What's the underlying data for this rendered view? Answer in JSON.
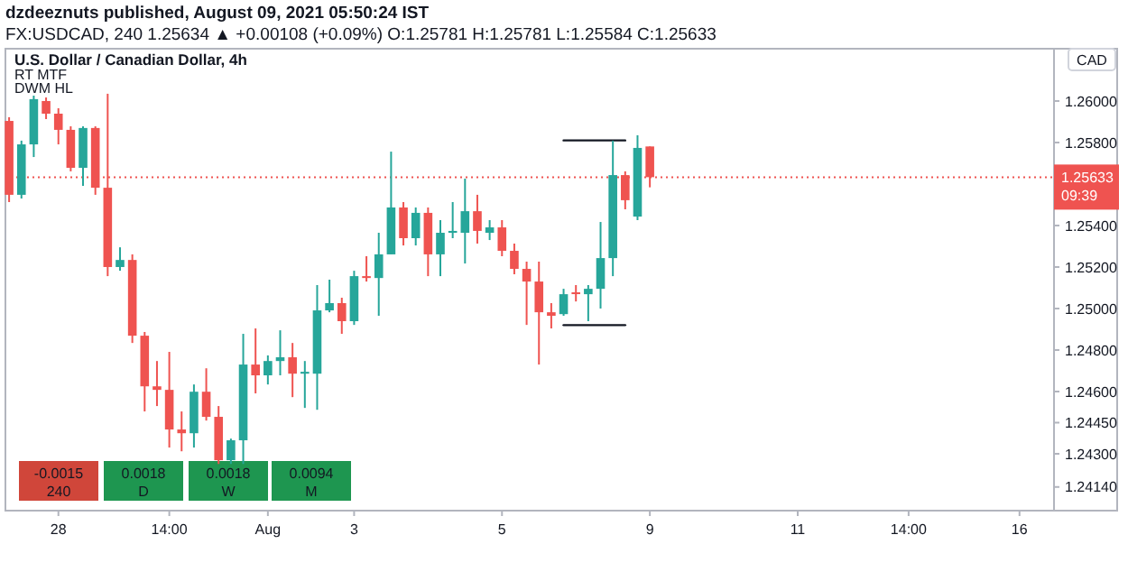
{
  "chart_data": {
    "type": "candlestick",
    "title": "U.S. Dollar / Canadian Dollar, 4h",
    "annotations": [
      "dzdeeznuts published, August 09, 2021 05:50:24 IST",
      "FX:USDCAD, 240  1.25634 ▲ +0.00108 (+0.09%) O:1.25781 H:1.25781 L:1.25584 C:1.25633",
      "RT MTF",
      "DWM HL",
      "-0.0015",
      "240",
      "0.0018",
      "D",
      "0.0018",
      "W",
      "0.0094",
      "M",
      "CAD",
      "09:39"
    ],
    "categories": [
      null,
      null,
      null,
      null,
      "28",
      null,
      null,
      null,
      null,
      null,
      null,
      null,
      null,
      "14:00",
      null,
      null,
      null,
      null,
      null,
      null,
      null,
      "Aug",
      null,
      null,
      null,
      null,
      null,
      null,
      "3",
      null,
      null,
      null,
      null,
      null,
      null,
      null,
      null,
      null,
      null,
      null,
      "5",
      null,
      null,
      null,
      null,
      null,
      null,
      null,
      null,
      null,
      null,
      null,
      "9",
      null,
      null,
      null,
      null,
      null,
      null,
      null,
      null,
      null,
      null,
      null,
      "11",
      null,
      null,
      null,
      null,
      null,
      null,
      null,
      null,
      "14:00",
      null,
      null,
      null,
      null,
      null,
      null,
      null,
      null,
      "16",
      null,
      null
    ],
    "ohlc": [
      [
        1.25904,
        1.25922,
        1.25513,
        1.25548
      ],
      [
        1.25548,
        1.25809,
        1.2553,
        1.25791
      ],
      [
        1.25791,
        1.26026,
        1.2573,
        1.26009
      ],
      [
        1.26,
        1.26017,
        1.25913,
        1.25939
      ],
      [
        1.25939,
        1.25965,
        1.25791,
        1.25861
      ],
      [
        1.25861,
        1.25878,
        1.25661,
        1.25678
      ],
      [
        1.25678,
        1.25878,
        1.25591,
        1.2587
      ],
      [
        1.2587,
        1.25878,
        1.25548,
        1.25582
      ],
      [
        1.25582,
        1.26035,
        1.25156,
        1.252
      ],
      [
        1.252,
        1.25295,
        1.25182,
        1.25234
      ],
      [
        1.25234,
        1.25261,
        1.24834,
        1.24869
      ],
      [
        1.24869,
        1.24887,
        1.24504,
        1.24625
      ],
      [
        1.24625,
        1.24747,
        1.2453,
        1.24608
      ],
      [
        1.24608,
        1.24791,
        1.2433,
        1.24417
      ],
      [
        1.24417,
        1.24504,
        1.24312,
        1.24399
      ],
      [
        1.24399,
        1.24634,
        1.2433,
        1.24599
      ],
      [
        1.24599,
        1.24712,
        1.2446,
        1.24478
      ],
      [
        1.24478,
        1.2453,
        1.24251,
        1.24269
      ],
      [
        1.24269,
        1.24373,
        1.24251,
        1.24365
      ],
      [
        1.24365,
        1.24878,
        1.24251,
        1.2473
      ],
      [
        1.2473,
        1.24904,
        1.24591,
        1.24678
      ],
      [
        1.24678,
        1.24774,
        1.24634,
        1.24747
      ],
      [
        1.24747,
        1.24895,
        1.24678,
        1.24765
      ],
      [
        1.24765,
        1.24834,
        1.24573,
        1.24686
      ],
      [
        1.24686,
        1.24747,
        1.24521,
        1.24695
      ],
      [
        1.24686,
        1.25113,
        1.24512,
        1.24991
      ],
      [
        1.24991,
        1.25139,
        1.24982,
        1.25026
      ],
      [
        1.25026,
        1.25052,
        1.24878,
        1.24939
      ],
      [
        1.24939,
        1.25182,
        1.24921,
        1.25156
      ],
      [
        1.25156,
        1.25252,
        1.2513,
        1.25147
      ],
      [
        1.25147,
        1.25365,
        1.24965,
        1.25261
      ],
      [
        1.25261,
        1.25756,
        1.25261,
        1.25487
      ],
      [
        1.25487,
        1.25513,
        1.25304,
        1.25339
      ],
      [
        1.25339,
        1.25487,
        1.25304,
        1.25461
      ],
      [
        1.25461,
        1.25487,
        1.25156,
        1.25261
      ],
      [
        1.25261,
        1.25426,
        1.25156,
        1.25365
      ],
      [
        1.25365,
        1.25513,
        1.25339,
        1.25374
      ],
      [
        1.25365,
        1.25626,
        1.25217,
        1.25469
      ],
      [
        1.25469,
        1.25548,
        1.25313,
        1.25374
      ],
      [
        1.25365,
        1.25426,
        1.2533,
        1.25391
      ],
      [
        1.25391,
        1.25426,
        1.25252,
        1.25278
      ],
      [
        1.25278,
        1.25313,
        1.25165,
        1.25191
      ],
      [
        1.25191,
        1.25226,
        1.24921,
        1.2513
      ],
      [
        1.2513,
        1.25226,
        1.2473,
        1.24982
      ],
      [
        1.24982,
        1.25026,
        1.24904,
        1.24965
      ],
      [
        1.24973,
        1.25095,
        1.24965,
        1.25069
      ],
      [
        1.25078,
        1.25113,
        1.25034,
        1.25074
      ],
      [
        1.25069,
        1.25113,
        1.24939,
        1.25095
      ],
      [
        1.25095,
        1.25417,
        1.25,
        1.25243
      ],
      [
        1.25243,
        1.25809,
        1.25156,
        1.25643
      ],
      [
        1.25643,
        1.25661,
        1.25478,
        1.25522
      ],
      [
        1.25443,
        1.25835,
        1.25426,
        1.25774
      ],
      [
        1.25781,
        1.25781,
        1.25584,
        1.25633
      ],
      null,
      null,
      null,
      null,
      null,
      null,
      null,
      null,
      null,
      null,
      null,
      null,
      null,
      null,
      null,
      null,
      null,
      null,
      null,
      null,
      null,
      null,
      null,
      null,
      null,
      null,
      null,
      null,
      null,
      null,
      null,
      null
    ],
    "series": [
      {
        "type": "line",
        "color": "#131722",
        "values": [
          null,
          null,
          null,
          null,
          null,
          null,
          null,
          null,
          null,
          null,
          null,
          null,
          null,
          null,
          null,
          null,
          null,
          null,
          null,
          null,
          null,
          null,
          null,
          null,
          null,
          null,
          null,
          null,
          null,
          null,
          null,
          null,
          null,
          null,
          null,
          null,
          null,
          null,
          null,
          null,
          null,
          null,
          null,
          null,
          null,
          1.2581,
          1.2581,
          1.2581,
          1.2581,
          1.2581,
          1.2581,
          null,
          null,
          null,
          null,
          null,
          null,
          null,
          null,
          null,
          null,
          null,
          null,
          null,
          null,
          null,
          null,
          null,
          null,
          null,
          null,
          null,
          null,
          null,
          null,
          null,
          null,
          null,
          null,
          null,
          null,
          null,
          null,
          null,
          null
        ]
      },
      {
        "type": "line",
        "color": "#131722",
        "values": [
          null,
          null,
          null,
          null,
          null,
          null,
          null,
          null,
          null,
          null,
          null,
          null,
          null,
          null,
          null,
          null,
          null,
          null,
          null,
          null,
          null,
          null,
          null,
          null,
          null,
          null,
          null,
          null,
          null,
          null,
          null,
          null,
          null,
          null,
          null,
          null,
          null,
          null,
          null,
          null,
          null,
          null,
          null,
          null,
          null,
          1.2492,
          1.2492,
          1.2492,
          1.2492,
          1.2492,
          1.2492,
          null,
          null,
          null,
          null,
          null,
          null,
          null,
          null,
          null,
          null,
          null,
          null,
          null,
          null,
          null,
          null,
          null,
          null,
          null,
          null,
          null,
          null,
          null,
          null,
          null,
          null,
          null,
          null,
          null,
          null,
          null,
          null,
          null,
          null
        ]
      }
    ],
    "ylim": [
      1.24026,
      1.26252
    ],
    "yticks": [
      {
        "value": 1.2414,
        "label": "1.24140"
      },
      {
        "value": 1.243,
        "label": "1.24300"
      },
      {
        "value": 1.2445,
        "label": "1.24450"
      },
      {
        "value": 1.246,
        "label": "1.24600"
      },
      {
        "value": 1.248,
        "label": "1.24800"
      },
      {
        "value": 1.25,
        "label": "1.25000"
      },
      {
        "value": 1.252,
        "label": "1.25200"
      },
      {
        "value": 1.254,
        "label": "1.25400"
      },
      {
        "value": 1.258,
        "label": "1.25800"
      },
      {
        "value": 1.26,
        "label": "1.26000"
      }
    ],
    "ref_lines": [
      {
        "axis": "y",
        "value": 1.25633,
        "label": "1.25633",
        "color": "#ef5350",
        "line_style": "dotted"
      }
    ]
  }
}
